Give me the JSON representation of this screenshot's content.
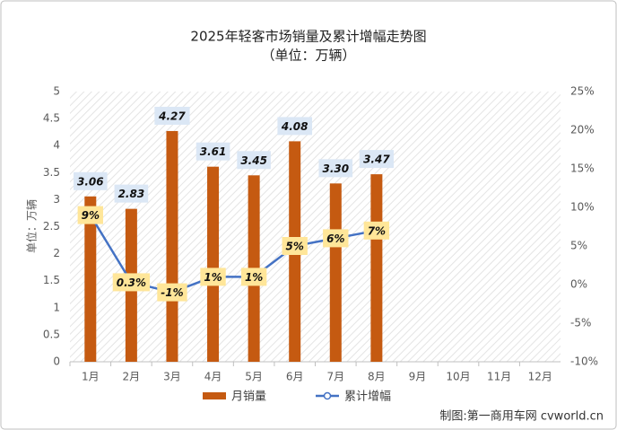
{
  "chart_data": {
    "type": "bar-line",
    "title": "2025年轻客市场销量及累计增幅走势图",
    "subtitle": "（单位：万辆）",
    "y_label": "单位：万辆",
    "source": "制图:第一商用车网 cvworld.cn",
    "categories": [
      "1月",
      "2月",
      "3月",
      "4月",
      "5月",
      "6月",
      "7月",
      "8月",
      "9月",
      "10月",
      "11月",
      "12月"
    ],
    "series": [
      {
        "name": "月销量",
        "kind": "bar",
        "color": "#c55a11",
        "values": [
          3.06,
          2.83,
          4.27,
          3.61,
          3.45,
          4.08,
          3.3,
          3.47,
          null,
          null,
          null,
          null
        ],
        "value_labels": [
          "3.06",
          "2.83",
          "4.27",
          "3.61",
          "3.45",
          "4.08",
          "3.30",
          "3.47",
          null,
          null,
          null,
          null
        ]
      },
      {
        "name": "累计增幅",
        "kind": "line",
        "axis": "y2",
        "color": "#4472c4",
        "values": [
          9,
          0.3,
          -1,
          1,
          1,
          5,
          6,
          7,
          null,
          null,
          null,
          null
        ],
        "value_labels": [
          "9%",
          "0.3%",
          "-1%",
          "1%",
          "1%",
          "5%",
          "6%",
          "7%",
          null,
          null,
          null,
          null
        ]
      }
    ],
    "ylim": [
      0,
      5
    ],
    "yticks": [
      0,
      0.5,
      1,
      1.5,
      2,
      2.5,
      3,
      3.5,
      4,
      4.5,
      5
    ],
    "y2lim": [
      -10,
      25
    ],
    "y2ticks": [
      {
        "value": -10,
        "label": "-10%"
      },
      {
        "value": -5,
        "label": "-5%"
      },
      {
        "value": 0,
        "label": "0%"
      },
      {
        "value": 5,
        "label": "5%"
      },
      {
        "value": 10,
        "label": "10%"
      },
      {
        "value": 15,
        "label": "15%"
      },
      {
        "value": 20,
        "label": "20%"
      },
      {
        "value": 25,
        "label": "25%"
      }
    ]
  }
}
